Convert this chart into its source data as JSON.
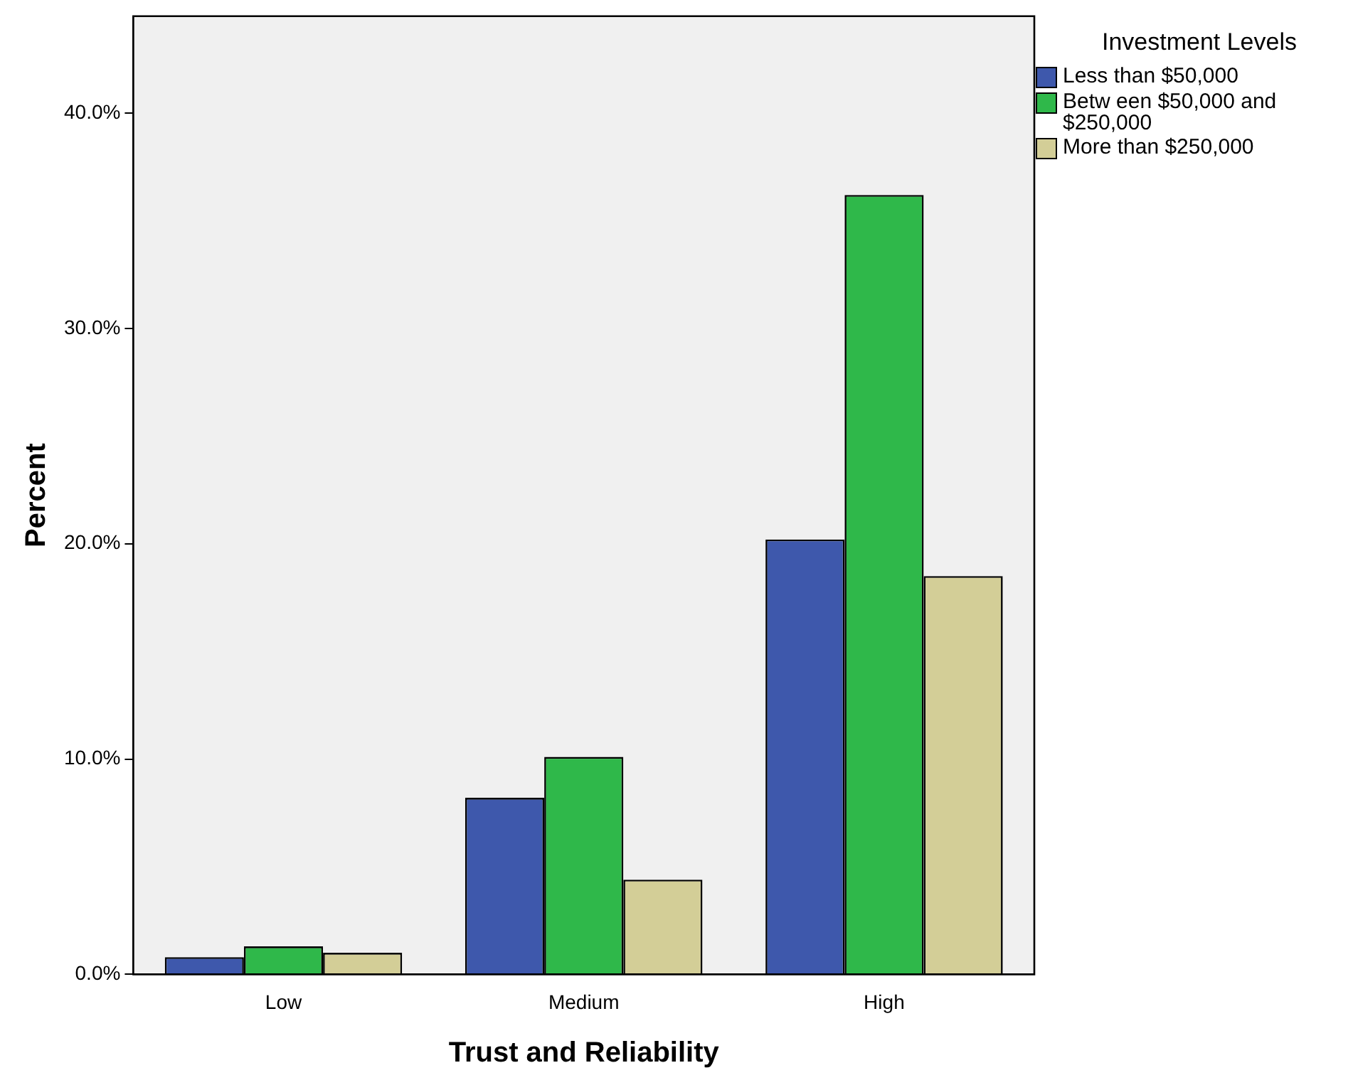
{
  "chart_data": {
    "type": "bar",
    "xlabel": "Trust and Reliability",
    "ylabel": "Percent",
    "legend_title": "Investment Levels",
    "legend": "top right",
    "grid": false,
    "categories": [
      "Low",
      "Medium",
      "High"
    ],
    "series": [
      {
        "name": "Less than $50,000",
        "color": "#3e58ac",
        "values": [
          0.8,
          8.2,
          20.2
        ]
      },
      {
        "name": "Betw een $50,000 and $250,000",
        "color": "#2fb84a",
        "values": [
          1.3,
          10.1,
          36.2
        ]
      },
      {
        "name": "More than $250,000",
        "color": "#d3ce97",
        "values": [
          1.0,
          4.4,
          18.5
        ]
      }
    ],
    "ylim": [
      0,
      44.5
    ],
    "yticks": [
      {
        "value": 0,
        "label": "0.0%"
      },
      {
        "value": 10,
        "label": "10.0%"
      },
      {
        "value": 20,
        "label": "20.0%"
      },
      {
        "value": 30,
        "label": "30.0%"
      },
      {
        "value": 40,
        "label": "40.0%"
      }
    ]
  }
}
